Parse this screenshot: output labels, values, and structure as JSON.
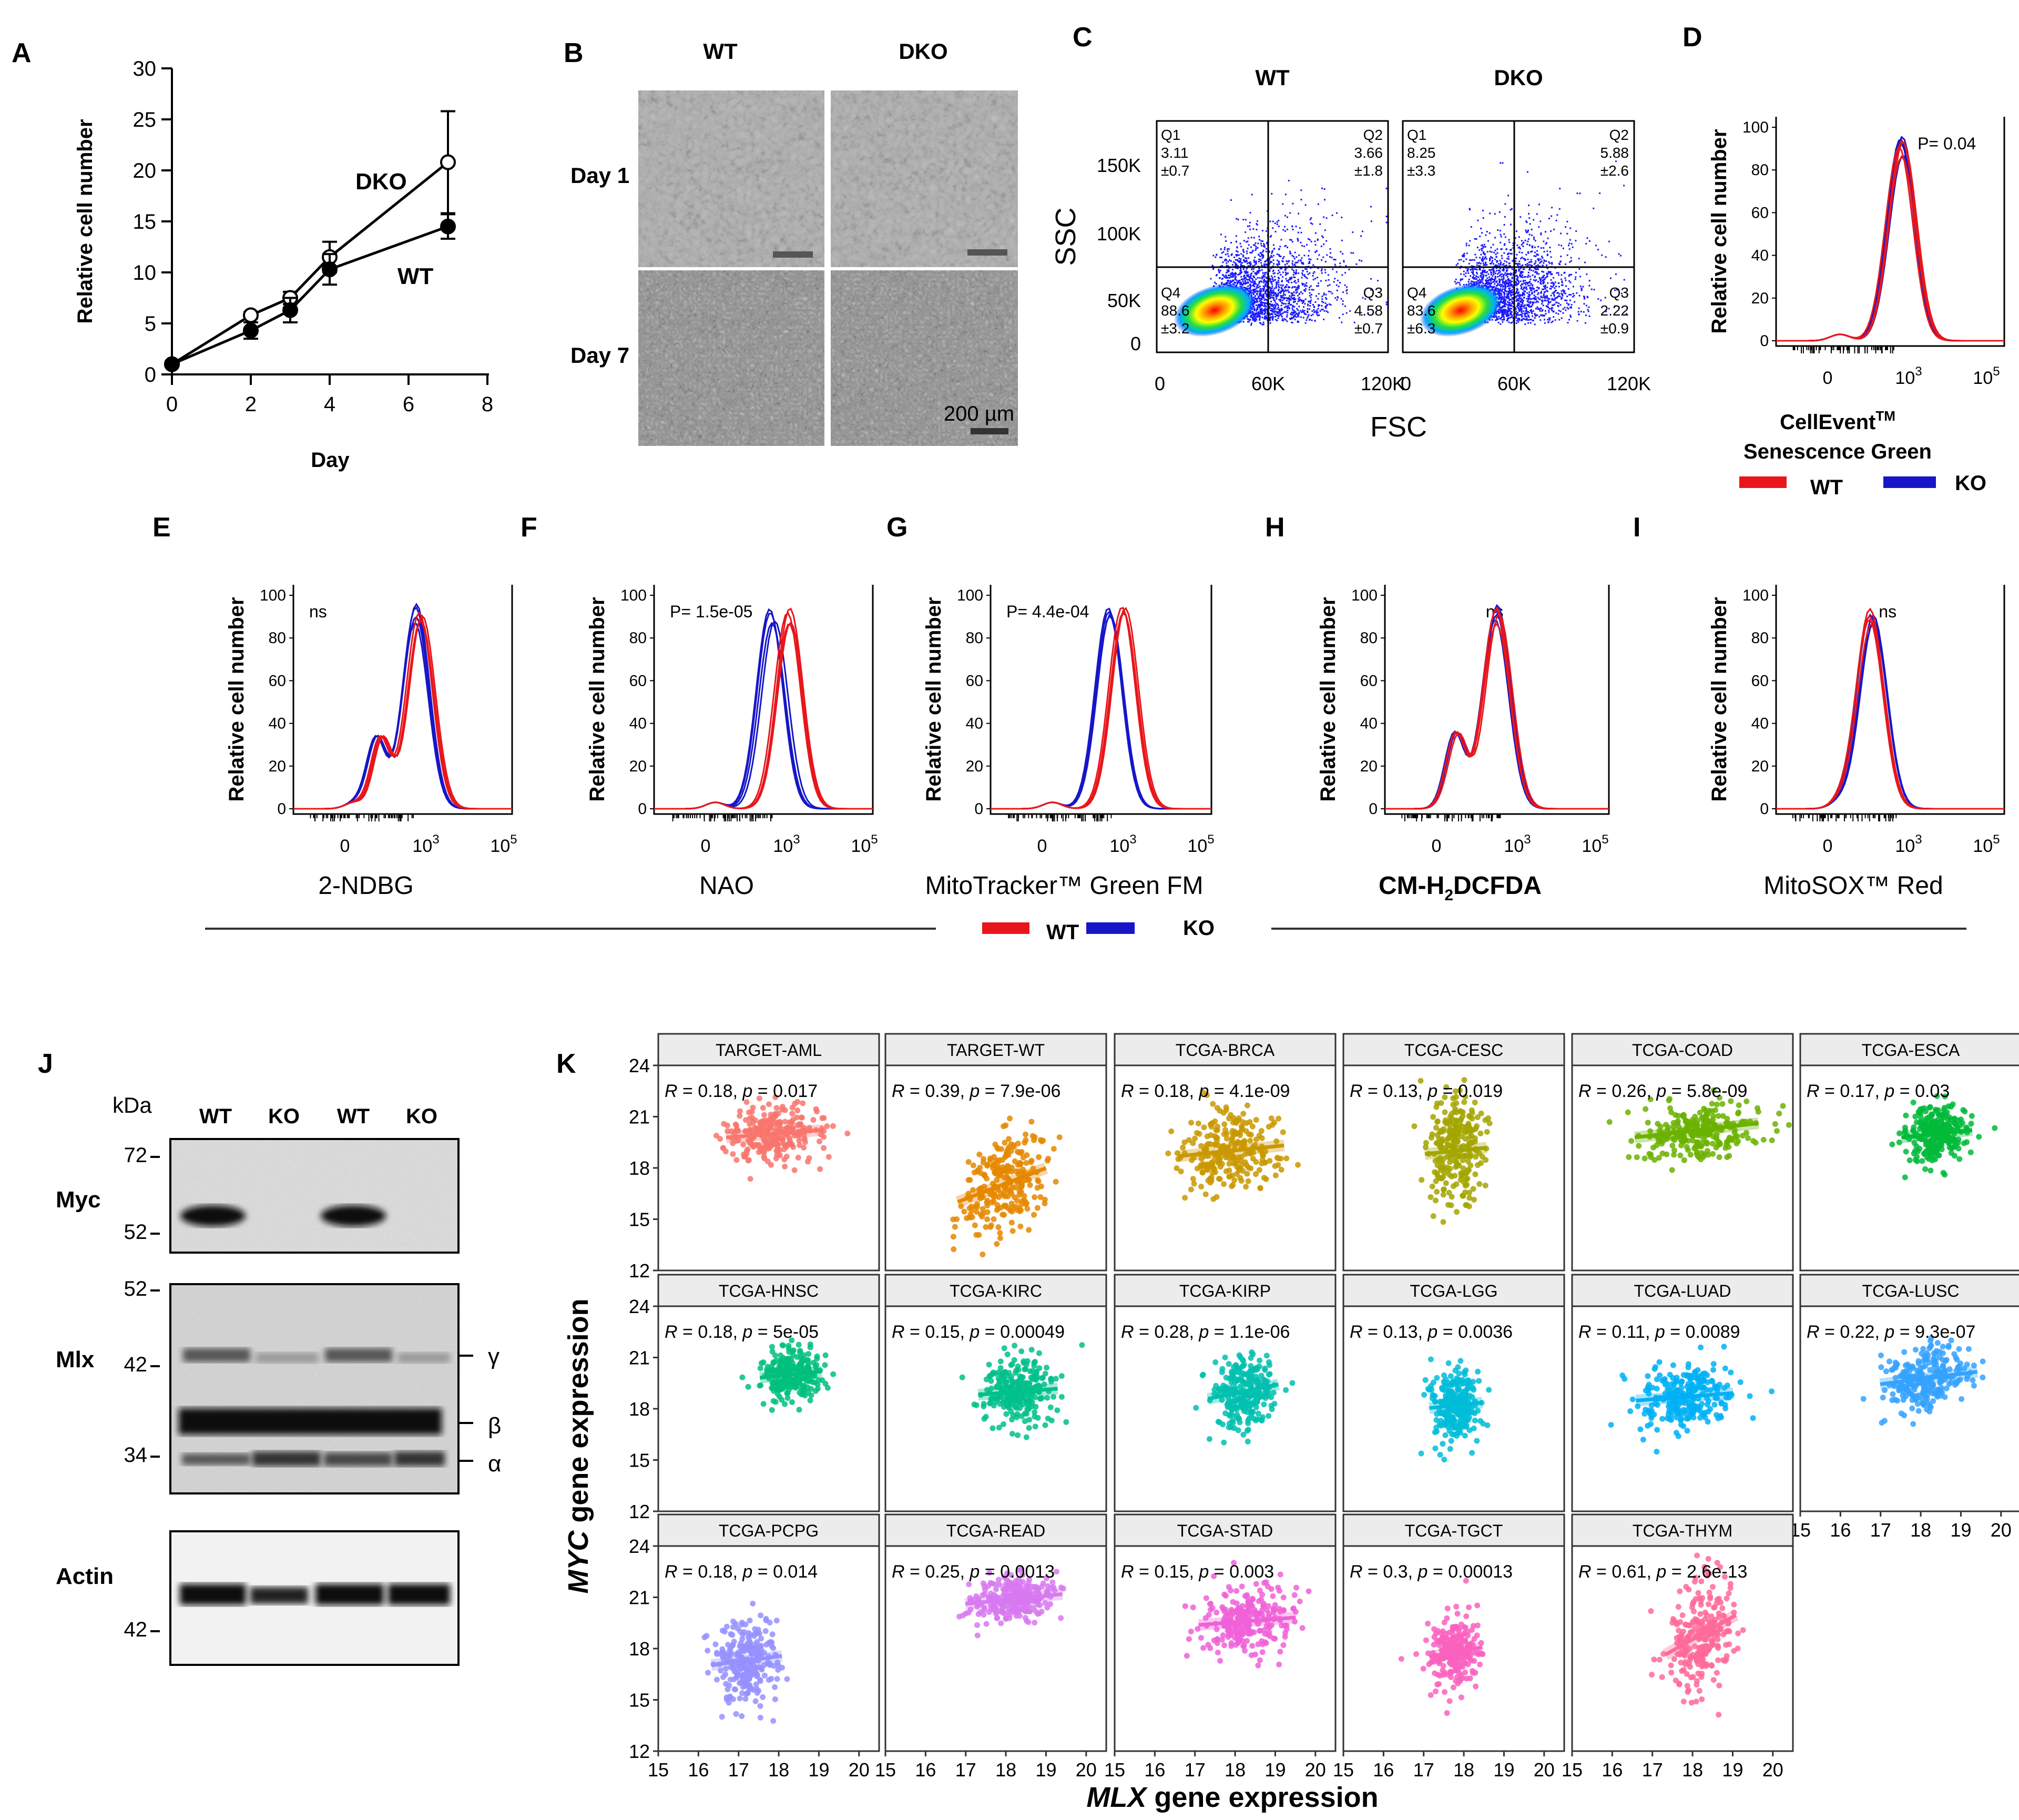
{
  "panels": {
    "A": "A",
    "B": "B",
    "C": "C",
    "D": "D",
    "E": "E",
    "F": "F",
    "G": "G",
    "H": "H",
    "I": "I",
    "J": "J",
    "K": "K"
  },
  "colors": {
    "wt": "#e8161b",
    "ko": "#1616c8",
    "microscopy": "#aaaaaa"
  },
  "legend": {
    "wt": "WT",
    "ko": "KO"
  },
  "panelA": {
    "chart_data": {
      "type": "line",
      "xlabel": "Day",
      "ylabel": "Relative cell number",
      "xlim": [
        0,
        8
      ],
      "ylim": [
        0,
        30
      ],
      "xticks": [
        "0",
        "2",
        "4",
        "6",
        "8"
      ],
      "yticks": [
        "0",
        "5",
        "10",
        "15",
        "20",
        "25",
        "30"
      ],
      "series": [
        {
          "name": "DKO",
          "marker": "open",
          "x": [
            0,
            2,
            3,
            4,
            7
          ],
          "y": [
            1,
            5.8,
            7.5,
            11.5,
            20.8
          ],
          "err": [
            0.2,
            0.3,
            0.6,
            1.5,
            5
          ]
        },
        {
          "name": "WT",
          "marker": "filled",
          "x": [
            0,
            2,
            3,
            4,
            7
          ],
          "y": [
            1,
            4.3,
            6.3,
            10.3,
            14.5
          ],
          "err": [
            0.2,
            0.8,
            1.2,
            1.5,
            1.2
          ]
        }
      ]
    }
  },
  "panelB": {
    "col1": "WT",
    "col2": "DKO",
    "row1": "Day 1",
    "row2": "Day 7",
    "scale": "200 µm"
  },
  "panelC": {
    "chart_data": {
      "type": "scatter",
      "xlabel": "FSC",
      "ylabel": "SSC",
      "xticks": [
        "0",
        "60K",
        "120K"
      ],
      "yticks": [
        "0",
        "50K",
        "100K",
        "150K"
      ],
      "plots": [
        {
          "title": "WT",
          "q1": "Q1",
          "q1v": "3.11",
          "q1e": "±0.7",
          "q2": "Q2",
          "q2v": "3.66",
          "q2e": "±1.8",
          "q3": "Q3",
          "q3v": "4.58",
          "q3e": "±0.7",
          "q4": "Q4",
          "q4v": "88.6",
          "q4e": "±3.2"
        },
        {
          "title": "DKO",
          "q1": "Q1",
          "q1v": "8.25",
          "q1e": "±3.3",
          "q2": "Q2",
          "q2v": "5.88",
          "q2e": "±2.6",
          "q3": "Q3",
          "q3v": "2.22",
          "q3e": "±0.9",
          "q4": "Q4",
          "q4v": "83.6",
          "q4e": "±6.3"
        }
      ]
    }
  },
  "histograms": {
    "ylabel": "Relative cell number",
    "yticks": [
      "0",
      "20",
      "40",
      "60",
      "80",
      "100"
    ],
    "xtick0": "0",
    "xtick3": "10",
    "xtick5": "10",
    "exp3": "3",
    "exp5": "5",
    "chart_data": [
      {
        "panel": "D",
        "type": "area",
        "stat": "P= 0.04",
        "xlabel1": "CellEvent",
        "xlabel1sup": "TM",
        "xlabel2": "Senescence Green",
        "wt_peak": 0.55,
        "ko_peak": 0.55
      },
      {
        "panel": "E",
        "type": "area",
        "stat": "ns",
        "xlabel": "2-NDBG",
        "wt_peak": 0.58,
        "ko_peak": 0.56
      },
      {
        "panel": "F",
        "type": "area",
        "stat": "P= 1.5e-05",
        "xlabel": "NAO",
        "wt_peak": 0.62,
        "ko_peak": 0.54
      },
      {
        "panel": "G",
        "type": "area",
        "stat": "P= 4.4e-04",
        "xlabel": "MitoTracker™ Green FM",
        "wt_peak": 0.6,
        "ko_peak": 0.54
      },
      {
        "panel": "H",
        "type": "area",
        "stat": "ns",
        "xlabel": "CM-H2DCFDA",
        "xlabel_a": "CM-H",
        "xlabel_sub": "2",
        "xlabel_b": "DCFDA",
        "wt_peak": 0.5,
        "ko_peak": 0.5
      },
      {
        "panel": "I",
        "type": "area",
        "stat": "ns",
        "xlabel": "MitoSOX™ Red",
        "wt_peak": 0.42,
        "ko_peak": 0.42
      }
    ]
  },
  "panelJ": {
    "kda": "kDa",
    "lanes": [
      "WT",
      "KO",
      "WT",
      "KO"
    ],
    "blots": [
      {
        "name": "Myc",
        "markers": [
          "72",
          "52"
        ]
      },
      {
        "name": "Mlx",
        "markers": [
          "52",
          "42",
          "34"
        ],
        "bands": [
          "γ",
          "β",
          "α"
        ]
      },
      {
        "name": "Actin",
        "markers": [
          "42"
        ]
      }
    ]
  },
  "panelK": {
    "chart_data": {
      "type": "scatter",
      "xlabel_gene": "MLX",
      "xlabel_rest": " gene expression",
      "ylabel_gene": "MYC",
      "ylabel_rest": " gene expression",
      "xlim": [
        15,
        20.5
      ],
      "ylim": [
        12,
        24
      ],
      "xticks": [
        "15",
        "16",
        "17",
        "18",
        "19",
        "20"
      ],
      "yticks": [
        "12",
        "15",
        "18",
        "21",
        "24"
      ],
      "facets": [
        {
          "title": "TARGET-AML",
          "r": "0.18",
          "p": "0.017",
          "color": "#f8766d",
          "cx": 17.9,
          "cy": 20,
          "sx": 0.55,
          "sy": 0.9,
          "slope": 0.3
        },
        {
          "title": "TARGET-WT",
          "r": "0.39",
          "p": "7.9e-06",
          "color": "#e58700",
          "cx": 17.9,
          "cy": 17,
          "sx": 0.5,
          "sy": 1.5,
          "slope": 1.5
        },
        {
          "title": "TCGA-BRCA",
          "r": "0.18",
          "p": "4.1e-09",
          "color": "#c99800",
          "cx": 17.9,
          "cy": 19,
          "sx": 0.6,
          "sy": 1.2,
          "slope": 0.4
        },
        {
          "title": "TCGA-CESC",
          "r": "0.13",
          "p": "0.019",
          "color": "#a3a500",
          "cx": 17.8,
          "cy": 19,
          "sx": 0.35,
          "sy": 1.6,
          "slope": 0.4
        },
        {
          "title": "TCGA-COAD",
          "r": "0.26",
          "p": "5.8e-09",
          "color": "#6bb100",
          "cx": 18.1,
          "cy": 20.2,
          "sx": 0.7,
          "sy": 0.8,
          "slope": 0.45
        },
        {
          "title": "TCGA-ESCA",
          "r": "0.17",
          "p": "0.03",
          "color": "#00ba38",
          "cx": 18.4,
          "cy": 20,
          "sx": 0.4,
          "sy": 0.8,
          "slope": 0.4
        },
        {
          "title": "TCGA-HNSC",
          "r": "0.18",
          "p": "5e-05",
          "color": "#00bf7d",
          "cx": 18.3,
          "cy": 20,
          "sx": 0.35,
          "sy": 0.7,
          "slope": 0.4
        },
        {
          "title": "TCGA-KIRC",
          "r": "0.15",
          "p": "0.00049",
          "color": "#00c08b",
          "cx": 18.3,
          "cy": 19,
          "sx": 0.45,
          "sy": 1.0,
          "slope": 0.3
        },
        {
          "title": "TCGA-KIRP",
          "r": "0.28",
          "p": "1.1e-06",
          "color": "#00c0af",
          "cx": 18.2,
          "cy": 19,
          "sx": 0.4,
          "sy": 1.0,
          "slope": 0.8
        },
        {
          "title": "TCGA-LGG",
          "r": "0.13",
          "p": "0.0036",
          "color": "#00bcd8",
          "cx": 17.8,
          "cy": 18.2,
          "sx": 0.3,
          "sy": 1.0,
          "slope": 0.4
        },
        {
          "title": "TCGA-LUAD",
          "r": "0.11",
          "p": "0.0089",
          "color": "#00b0f6",
          "cx": 17.8,
          "cy": 18.7,
          "sx": 0.55,
          "sy": 1.0,
          "slope": 0.3
        },
        {
          "title": "TCGA-LUSC",
          "r": "0.22",
          "p": "9.3e-07",
          "color": "#35a2ff",
          "cx": 18.2,
          "cy": 19.8,
          "sx": 0.55,
          "sy": 0.9,
          "slope": 0.5
        },
        {
          "title": "TCGA-PCPG",
          "r": "0.18",
          "p": "0.014",
          "color": "#9590ff",
          "cx": 17.2,
          "cy": 17.3,
          "sx": 0.4,
          "sy": 1.2,
          "slope": 0.5
        },
        {
          "title": "TCGA-READ",
          "r": "0.25",
          "p": "0.0013",
          "color": "#d779f0",
          "cx": 18.2,
          "cy": 20.9,
          "sx": 0.55,
          "sy": 0.7,
          "slope": 0.4
        },
        {
          "title": "TCGA-STAD",
          "r": "0.15",
          "p": "0.003",
          "color": "#f060d8",
          "cx": 18.3,
          "cy": 19.6,
          "sx": 0.55,
          "sy": 1.0,
          "slope": 0.3
        },
        {
          "title": "TCGA-TGCT",
          "r": "0.3",
          "p": "0.00013",
          "color": "#fa62be",
          "cx": 17.8,
          "cy": 17.8,
          "sx": 0.3,
          "sy": 1.0,
          "slope": 0.7
        },
        {
          "title": "TCGA-THYM",
          "r": "0.61",
          "p": "2.6e-13",
          "color": "#ff6a98",
          "cx": 18.2,
          "cy": 18.8,
          "sx": 0.4,
          "sy": 1.6,
          "slope": 2.2
        }
      ]
    }
  }
}
